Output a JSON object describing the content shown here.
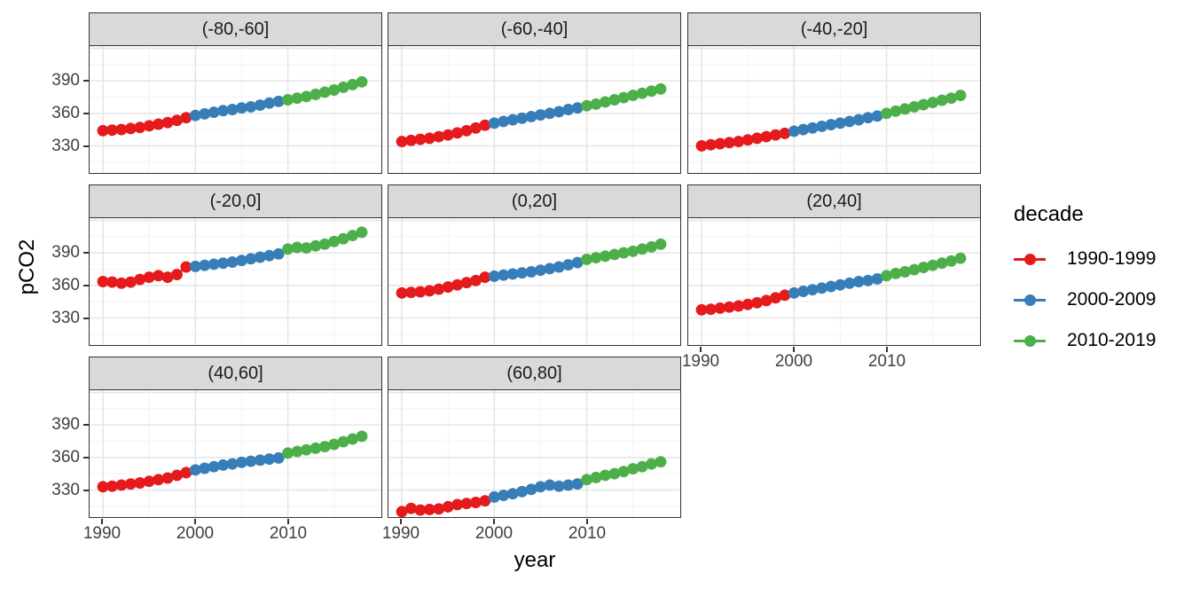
{
  "chart_data": {
    "type": "scatter",
    "title": "",
    "xlabel": "year",
    "ylabel": "pCO2",
    "x_ticks": [
      "1990",
      "2000",
      "2010"
    ],
    "x_tick_values": [
      1990,
      2000,
      2010
    ],
    "x_minor_values": [
      1995,
      2005,
      2015
    ],
    "y_ticks": [
      "390",
      "360",
      "330"
    ],
    "y_tick_values": [
      390,
      360,
      330
    ],
    "y_major_values": [
      330,
      360,
      390,
      420
    ],
    "y_minor_values": [
      315,
      345,
      375,
      405
    ],
    "xlim": [
      1988.57,
      2020.1
    ],
    "ylim": [
      305,
      422
    ],
    "grid": true,
    "legend_position": "right",
    "legend": {
      "title": "decade",
      "entries": [
        {
          "label": "1990-1999",
          "color": "#E41A1C",
          "from": 1990,
          "to": 1999
        },
        {
          "label": "2000-2009",
          "color": "#377EB8",
          "from": 2000,
          "to": 2009
        },
        {
          "label": "2010-2019",
          "color": "#4DAF4A",
          "from": 2010,
          "to": 2019
        }
      ]
    },
    "x": [
      1990,
      1991,
      1992,
      1993,
      1994,
      1995,
      1996,
      1997,
      1998,
      1999,
      2000,
      2001,
      2002,
      2003,
      2004,
      2005,
      2006,
      2007,
      2008,
      2009,
      2010,
      2011,
      2012,
      2013,
      2014,
      2015,
      2016,
      2017,
      2018
    ],
    "facets": [
      {
        "label": "(-80,-60]",
        "values": [
          344,
          344.5,
          345,
          346,
          347,
          348.5,
          350,
          351.5,
          353.5,
          356,
          358,
          359.5,
          361,
          362.5,
          363.5,
          365,
          366,
          367.5,
          369.5,
          371,
          372.5,
          374,
          375.5,
          377.5,
          379.5,
          381.5,
          384,
          386.5,
          389
        ]
      },
      {
        "label": "(-60,-40]",
        "values": [
          334,
          335,
          336,
          337,
          338.5,
          340,
          342,
          344,
          346.5,
          349,
          351,
          352.5,
          354,
          355.5,
          357,
          358.5,
          360,
          361.5,
          363.5,
          365,
          367,
          368.5,
          370.5,
          372.5,
          374.5,
          376.5,
          378.5,
          380.5,
          382.5
        ]
      },
      {
        "label": "(-40,-20]",
        "values": [
          330,
          331,
          332,
          333,
          334,
          335.5,
          337,
          338.5,
          340,
          341.5,
          343.5,
          345,
          346.5,
          348,
          349.5,
          351,
          352.5,
          354,
          356,
          357.5,
          360,
          362,
          364,
          366,
          368,
          370,
          372,
          374,
          376.5
        ]
      },
      {
        "label": "(-20,0]",
        "values": [
          363.5,
          363,
          362,
          363,
          365.5,
          367.5,
          369,
          367.5,
          370,
          377,
          377.5,
          378.5,
          379.5,
          380.5,
          381.5,
          383,
          384.5,
          386,
          387.5,
          389,
          393.5,
          395,
          394.5,
          396.5,
          398,
          400.5,
          403,
          406,
          409
        ]
      },
      {
        "label": "(0,20]",
        "values": [
          353,
          353.5,
          354,
          355,
          356.5,
          358.5,
          360.5,
          362.5,
          364.5,
          367.5,
          368.5,
          369.5,
          370.5,
          371.5,
          372.5,
          374,
          375.5,
          377,
          379,
          381,
          384,
          385.5,
          387,
          388.5,
          390,
          391.5,
          393.5,
          395.5,
          398
        ]
      },
      {
        "label": "(20,40]",
        "values": [
          337.5,
          338,
          339,
          340,
          341,
          342.5,
          344,
          346,
          348.5,
          351,
          353,
          354.5,
          356,
          357.5,
          359,
          360.5,
          362,
          363.5,
          364.5,
          366,
          369,
          371,
          372.5,
          374.5,
          376.5,
          378.5,
          380.5,
          382.5,
          385
        ]
      },
      {
        "label": "(40,60]",
        "values": [
          333,
          333.5,
          334.5,
          335.5,
          336.5,
          338,
          339.5,
          341,
          343.5,
          346,
          348.5,
          350,
          351.5,
          353,
          354,
          355.5,
          356.5,
          357.5,
          358.5,
          359.5,
          364,
          365.5,
          367,
          368.5,
          370,
          372,
          374.5,
          377,
          379.5
        ]
      },
      {
        "label": "(60,80]",
        "values": [
          310,
          313,
          311.5,
          312,
          312.5,
          314.5,
          316.5,
          317.5,
          318.5,
          320,
          323.5,
          325,
          326.5,
          328.5,
          330.5,
          333,
          334.5,
          333.5,
          334.5,
          335.5,
          339.5,
          341.5,
          343.5,
          345,
          347,
          349.5,
          351.5,
          354,
          356
        ]
      }
    ],
    "colors": {
      "red": "#E41A1C",
      "blue": "#377EB8",
      "green": "#4DAF4A",
      "strip_bg": "#D9D9D9",
      "border": "#333333",
      "grid_major": "#E6E6E6",
      "grid_minor": "#F3F3F3",
      "tick_text": "#404040"
    }
  }
}
